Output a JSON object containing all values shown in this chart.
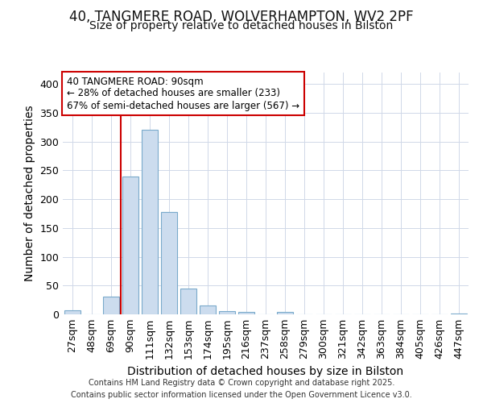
{
  "title_line1": "40, TANGMERE ROAD, WOLVERHAMPTON, WV2 2PF",
  "title_line2": "Size of property relative to detached houses in Bilston",
  "xlabel": "Distribution of detached houses by size in Bilston",
  "ylabel": "Number of detached properties",
  "categories": [
    "27sqm",
    "48sqm",
    "69sqm",
    "90sqm",
    "111sqm",
    "132sqm",
    "153sqm",
    "174sqm",
    "195sqm",
    "216sqm",
    "237sqm",
    "258sqm",
    "279sqm",
    "300sqm",
    "321sqm",
    "342sqm",
    "363sqm",
    "384sqm",
    "405sqm",
    "426sqm",
    "447sqm"
  ],
  "values": [
    7,
    0,
    31,
    240,
    320,
    178,
    45,
    16,
    5,
    4,
    0,
    4,
    0,
    0,
    0,
    0,
    0,
    0,
    0,
    0,
    2
  ],
  "bar_color": "#ccdcee",
  "bar_edge_color": "#7aaacb",
  "grid_color": "#d0d8e8",
  "bg_color": "#ffffff",
  "red_line_index": 3,
  "annotation_line1": "40 TANGMERE ROAD: 90sqm",
  "annotation_line2": "← 28% of detached houses are smaller (233)",
  "annotation_line3": "67% of semi-detached houses are larger (567) →",
  "annotation_box_color": "#ffffff",
  "annotation_box_edge": "#cc0000",
  "ylim": [
    0,
    420
  ],
  "yticks": [
    0,
    50,
    100,
    150,
    200,
    250,
    300,
    350,
    400
  ],
  "footer_text": "Contains HM Land Registry data © Crown copyright and database right 2025.\nContains public sector information licensed under the Open Government Licence v3.0.",
  "title_fontsize": 12,
  "subtitle_fontsize": 10,
  "tick_fontsize": 9,
  "label_fontsize": 10
}
